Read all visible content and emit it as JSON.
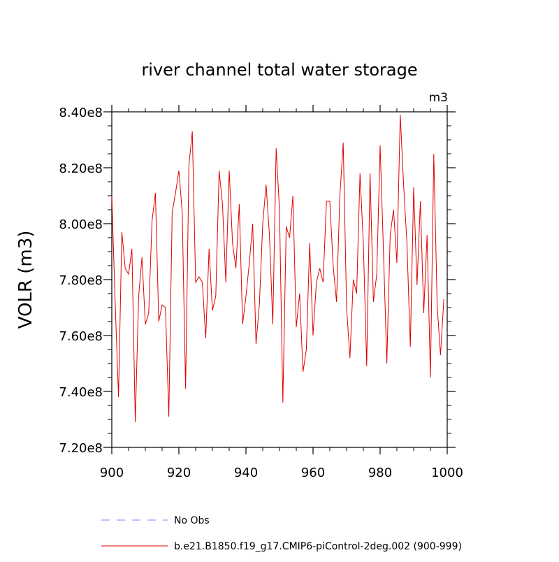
{
  "chart_data": {
    "type": "line",
    "title": "river channel total water storage",
    "units_label": "m3",
    "ylabel": "VOLR  (m3)",
    "xlabel": "",
    "xlim": [
      900,
      1000
    ],
    "ylim": [
      720000000.0,
      840000000.0
    ],
    "x_ticks": [
      900,
      920,
      940,
      960,
      980,
      1000
    ],
    "x_tick_labels": [
      "900",
      "920",
      "940",
      "960",
      "980",
      "1000"
    ],
    "y_ticks": [
      720000000.0,
      740000000.0,
      760000000.0,
      780000000.0,
      800000000.0,
      820000000.0,
      840000000.0
    ],
    "y_tick_labels": [
      "7.20e8",
      "7.40e8",
      "7.60e8",
      "7.80e8",
      "8.00e8",
      "8.20e8",
      "8.40e8"
    ],
    "grid": false,
    "legend_position": "bottom-left",
    "colors": {
      "obs": "#8080ff",
      "model": "#e00000",
      "axis": "#000000"
    },
    "series": [
      {
        "name": "No Obs",
        "style": "dashed",
        "x": [],
        "values": []
      },
      {
        "name": "b.e21.B1850.f19_g17.CMIP6-piControl-2deg.002 (900-999)",
        "style": "solid",
        "x": [
          900,
          901,
          902,
          903,
          904,
          905,
          906,
          907,
          908,
          909,
          910,
          911,
          912,
          913,
          914,
          915,
          916,
          917,
          918,
          919,
          920,
          921,
          922,
          923,
          924,
          925,
          926,
          927,
          928,
          929,
          930,
          931,
          932,
          933,
          934,
          935,
          936,
          937,
          938,
          939,
          940,
          941,
          942,
          943,
          944,
          945,
          946,
          947,
          948,
          949,
          950,
          951,
          952,
          953,
          954,
          955,
          956,
          957,
          958,
          959,
          960,
          961,
          962,
          963,
          964,
          965,
          966,
          967,
          968,
          969,
          970,
          971,
          972,
          973,
          974,
          975,
          976,
          977,
          978,
          979,
          980,
          981,
          982,
          983,
          984,
          985,
          986,
          987,
          988,
          989,
          990,
          991,
          992,
          993,
          994,
          995,
          996,
          997,
          998,
          999
        ],
        "values": [
          810000000.0,
          772000000.0,
          738000000.0,
          797000000.0,
          784000000.0,
          782000000.0,
          791000000.0,
          729000000.0,
          774000000.0,
          788000000.0,
          764000000.0,
          768000000.0,
          801000000.0,
          811000000.0,
          765000000.0,
          771000000.0,
          770000000.0,
          731000000.0,
          804000000.0,
          811000000.0,
          819000000.0,
          804000000.0,
          741000000.0,
          821000000.0,
          833000000.0,
          779000000.0,
          781000000.0,
          779000000.0,
          759000000.0,
          791000000.0,
          769000000.0,
          774000000.0,
          819000000.0,
          807000000.0,
          779000000.0,
          819000000.0,
          793000000.0,
          784000000.0,
          807000000.0,
          764000000.0,
          774000000.0,
          786000000.0,
          800000000.0,
          757000000.0,
          771000000.0,
          800000000.0,
          814000000.0,
          796000000.0,
          764000000.0,
          827000000.0,
          805000000.0,
          736000000.0,
          799000000.0,
          795000000.0,
          810000000.0,
          763000000.0,
          775000000.0,
          747000000.0,
          755000000.0,
          793000000.0,
          760000000.0,
          779000000.0,
          784000000.0,
          779000000.0,
          808000000.0,
          808000000.0,
          785000000.0,
          772000000.0,
          810000000.0,
          829000000.0,
          770000000.0,
          752000000.0,
          780000000.0,
          775000000.0,
          818000000.0,
          793000000.0,
          749000000.0,
          818000000.0,
          772000000.0,
          782000000.0,
          828000000.0,
          790000000.0,
          750000000.0,
          796000000.0,
          805000000.0,
          786000000.0,
          839000000.0,
          814000000.0,
          793000000.0,
          756000000.0,
          813000000.0,
          778000000.0,
          808000000.0,
          768000000.0,
          796000000.0,
          745000000.0,
          825000000.0,
          771000000.0,
          753000000.0,
          773000000.0
        ]
      }
    ]
  }
}
